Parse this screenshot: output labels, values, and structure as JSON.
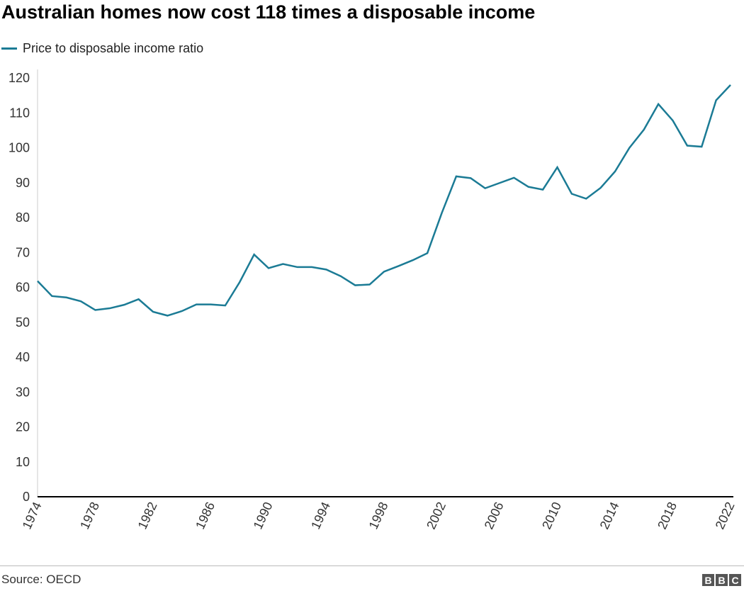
{
  "chart_data": {
    "type": "line",
    "title": "Australian homes now cost 118 times a disposable income",
    "xlabel": "",
    "ylabel": "",
    "ylim": [
      0,
      120
    ],
    "yticks": [
      0,
      10,
      20,
      30,
      40,
      50,
      60,
      70,
      80,
      90,
      100,
      110,
      120
    ],
    "xlim": [
      1974,
      2022
    ],
    "xticks": [
      1974,
      1978,
      1982,
      1986,
      1990,
      1994,
      1998,
      2002,
      2006,
      2010,
      2014,
      2018,
      2022
    ],
    "grid": false,
    "legend_placement": "top-left",
    "series": [
      {
        "name": "Price to disposable income ratio",
        "color": "#1b7b95",
        "x": [
          1974,
          1975,
          1976,
          1977,
          1978,
          1979,
          1980,
          1981,
          1982,
          1983,
          1984,
          1985,
          1986,
          1987,
          1988,
          1989,
          1990,
          1991,
          1992,
          1993,
          1994,
          1995,
          1996,
          1997,
          1998,
          1999,
          2000,
          2001,
          2002,
          2003,
          2004,
          2005,
          2006,
          2007,
          2008,
          2009,
          2010,
          2011,
          2012,
          2013,
          2014,
          2015,
          2016,
          2017,
          2018,
          2019,
          2020,
          2021,
          2022
        ],
        "values": [
          61.8,
          57.5,
          57.1,
          56.0,
          53.5,
          54.0,
          55.0,
          56.6,
          53.0,
          51.9,
          53.2,
          55.1,
          55.1,
          54.8,
          61.5,
          69.4,
          65.5,
          66.7,
          65.8,
          65.8,
          65.1,
          63.2,
          60.6,
          60.8,
          64.5,
          66.1,
          67.8,
          69.8,
          81.3,
          91.8,
          91.3,
          88.4,
          89.9,
          91.4,
          88.8,
          88.0,
          94.4,
          86.8,
          85.4,
          88.5,
          93.2,
          100.0,
          105.2,
          112.5,
          107.8,
          100.6,
          100.3,
          113.6,
          118.0
        ]
      }
    ]
  },
  "footer": {
    "source": "Source: OECD",
    "logo": "BBC"
  }
}
